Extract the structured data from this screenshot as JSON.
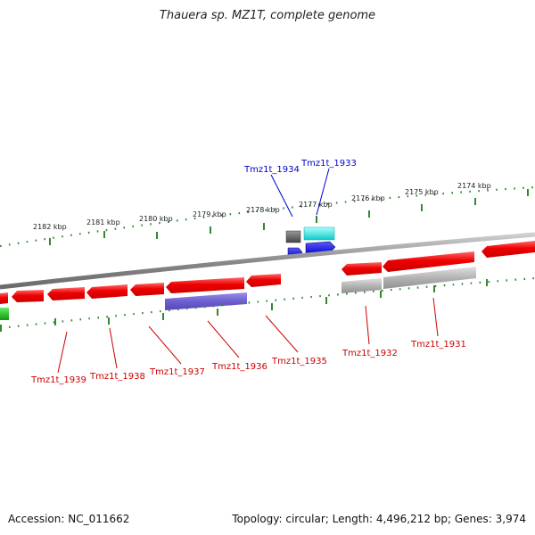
{
  "title": "Thauera sp. MZ1T, complete genome",
  "footer": {
    "accession": "Accession: NC_011662",
    "summary": "Topology: circular; Length: 4,496,212 bp; Genes: 3,974"
  },
  "scale_labels": [
    "2182 kbp",
    "2181 kbp",
    "2180 kbp",
    "2179 kbp",
    "2178 kbp",
    "2177 kbp",
    "2176 kbp",
    "2175 kbp",
    "2174 kbp"
  ],
  "genes_top": [
    {
      "label": "Tmz1t_1934",
      "color": "#0000cc"
    },
    {
      "label": "Tmz1t_1933",
      "color": "#0000cc"
    }
  ],
  "genes_bottom": [
    {
      "label": "Tmz1t_1939",
      "color": "#cc0000"
    },
    {
      "label": "Tmz1t_1938",
      "color": "#cc0000"
    },
    {
      "label": "Tmz1t_1937",
      "color": "#cc0000"
    },
    {
      "label": "Tmz1t_1936",
      "color": "#cc0000"
    },
    {
      "label": "Tmz1t_1935",
      "color": "#cc0000"
    },
    {
      "label": "Tmz1t_1932",
      "color": "#cc0000"
    },
    {
      "label": "Tmz1t_1931",
      "color": "#cc0000"
    }
  ],
  "colors": {
    "cds": "#ee0000",
    "pseudo": "#aaaaaa",
    "rna": "#6655cc",
    "other_dark": "#555555",
    "cyan": "#22dddd",
    "blue": "#0000ee",
    "green": "#22bb22",
    "tick": "#338833",
    "backbone": "#888888"
  }
}
